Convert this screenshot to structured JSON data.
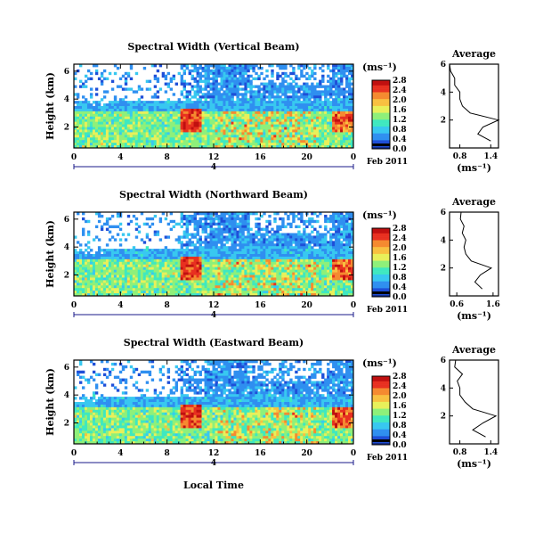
{
  "chart_data": [
    {
      "type": "heatmap",
      "title": "Spectral Width (Vertical Beam)",
      "ylabel": "Height (km)",
      "xlabel": "",
      "xticks": [
        "0",
        "4",
        "8",
        "12",
        "16",
        "20",
        "0"
      ],
      "yticks": [
        "2",
        "4",
        "6"
      ],
      "date_marker": "4",
      "date_label": "Feb 2011",
      "colorbar": {
        "unit": "(ms⁻¹)",
        "ticks": [
          "0.0",
          "0.4",
          "0.8",
          "1.2",
          "1.6",
          "2.0",
          "2.4",
          "2.8"
        ]
      },
      "profile": {
        "title": "Average",
        "xlabel": "(ms⁻¹)",
        "xticks": [
          "0.8",
          "1.4"
        ],
        "yticks": [
          "2",
          "4",
          "6"
        ],
        "height_km": [
          0.5,
          1.0,
          1.5,
          2.0,
          2.5,
          3.0,
          3.5,
          4.0,
          4.5,
          5.0,
          5.5,
          6.0
        ],
        "width_ms": [
          1.4,
          1.15,
          1.25,
          1.55,
          1.0,
          0.85,
          0.8,
          0.8,
          0.7,
          0.7,
          0.62,
          0.6
        ]
      }
    },
    {
      "type": "heatmap",
      "title": "Spectral Width (Northward Beam)",
      "ylabel": "Height (km)",
      "xlabel": "",
      "xticks": [
        "0",
        "4",
        "8",
        "12",
        "16",
        "20",
        "0"
      ],
      "yticks": [
        "2",
        "4",
        "6"
      ],
      "date_marker": "4",
      "date_label": "Feb 2011",
      "colorbar": {
        "unit": "(ms⁻¹)",
        "ticks": [
          "0.0",
          "0.4",
          "0.8",
          "1.2",
          "1.6",
          "2.0",
          "2.4",
          "2.8"
        ]
      },
      "profile": {
        "title": "Average",
        "xlabel": "(ms⁻¹)",
        "xticks": [
          "0.6",
          "1.6"
        ],
        "yticks": [
          "2",
          "4",
          "6"
        ],
        "height_km": [
          0.5,
          1.0,
          1.5,
          2.0,
          2.5,
          3.0,
          3.5,
          4.0,
          4.5,
          5.0,
          5.5,
          6.0
        ],
        "width_ms": [
          1.3,
          1.1,
          1.25,
          1.55,
          1.0,
          0.85,
          0.8,
          0.85,
          0.75,
          0.8,
          0.7,
          0.72
        ]
      }
    },
    {
      "type": "heatmap",
      "title": "Spectral Width (Eastward Beam)",
      "ylabel": "Height (km)",
      "xlabel": "Local Time",
      "xticks": [
        "0",
        "4",
        "8",
        "12",
        "16",
        "20",
        "0"
      ],
      "yticks": [
        "2",
        "4",
        "6"
      ],
      "date_marker": "4",
      "date_label": "Feb 2011",
      "colorbar": {
        "unit": "(ms⁻¹)",
        "ticks": [
          "0.0",
          "0.4",
          "0.8",
          "1.2",
          "1.6",
          "2.0",
          "2.4",
          "2.8"
        ]
      },
      "profile": {
        "title": "Average",
        "xlabel": "(ms⁻¹)",
        "xticks": [
          "0.8",
          "1.4"
        ],
        "yticks": [
          "2",
          "4",
          "6"
        ],
        "height_km": [
          0.5,
          1.0,
          1.5,
          2.0,
          2.5,
          3.0,
          3.5,
          4.0,
          4.5,
          5.0,
          5.5,
          6.0
        ],
        "width_ms": [
          1.3,
          1.05,
          1.25,
          1.5,
          1.05,
          0.9,
          0.8,
          0.8,
          0.75,
          0.85,
          0.7,
          0.72
        ]
      }
    }
  ],
  "colors": {
    "scale": [
      "#102a8a",
      "#1f4fd8",
      "#2f8ff0",
      "#38c8f0",
      "#3fe8c0",
      "#8ef07a",
      "#e8f05a",
      "#f8c040",
      "#f58a30",
      "#e83020",
      "#c01010"
    ],
    "dark_band": "#000000"
  }
}
